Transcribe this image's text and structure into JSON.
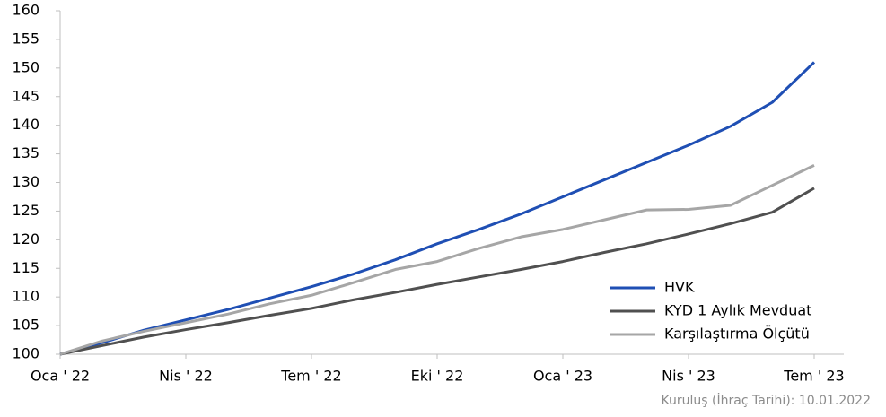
{
  "chart_data": {
    "type": "line",
    "x": [
      "2022-01",
      "2022-02",
      "2022-03",
      "2022-04",
      "2022-05",
      "2022-06",
      "2022-07",
      "2022-08",
      "2022-09",
      "2022-10",
      "2022-11",
      "2022-12",
      "2023-01",
      "2023-02",
      "2023-03",
      "2023-04",
      "2023-05",
      "2023-06",
      "2023-07"
    ],
    "series": [
      {
        "name": "HVK",
        "color": "#1f4fb4",
        "values": [
          100,
          102,
          104.2,
          106,
          107.8,
          109.8,
          111.8,
          114,
          116.5,
          119.3,
          121.8,
          124.5,
          127.5,
          130.5,
          133.5,
          136.5,
          139.8,
          144,
          151
        ]
      },
      {
        "name": "KYD 1 Aylık Mevduat",
        "color": "#505050",
        "values": [
          100,
          101.5,
          103,
          104.3,
          105.5,
          106.8,
          108,
          109.5,
          110.8,
          112.2,
          113.5,
          114.8,
          116.2,
          117.8,
          119.3,
          121,
          122.8,
          124.8,
          129
        ]
      },
      {
        "name": "Karşılaştırma Ölçütü",
        "color": "#a6a6a6",
        "values": [
          100,
          102.3,
          104,
          105.5,
          107,
          108.8,
          110.3,
          112.5,
          114.8,
          116.2,
          118.5,
          120.5,
          121.8,
          123.5,
          125.2,
          125.3,
          126,
          129.5,
          133
        ]
      }
    ],
    "xticks": [
      {
        "value": "2022-01",
        "label": "Oca ' 22"
      },
      {
        "value": "2022-04",
        "label": "Nis ' 22"
      },
      {
        "value": "2022-07",
        "label": "Tem ' 22"
      },
      {
        "value": "2022-10",
        "label": "Eki ' 22"
      },
      {
        "value": "2023-01",
        "label": "Oca ' 23"
      },
      {
        "value": "2023-04",
        "label": "Nis ' 23"
      },
      {
        "value": "2023-07",
        "label": "Tem ' 23"
      }
    ],
    "ylim": [
      100,
      160
    ],
    "yticks": [
      100,
      105,
      110,
      115,
      120,
      125,
      130,
      135,
      140,
      145,
      150,
      155,
      160
    ],
    "grid": false,
    "legend": "lower right",
    "annotation": "Kuruluş (İhraç Tarihi): 10.01.2022"
  }
}
